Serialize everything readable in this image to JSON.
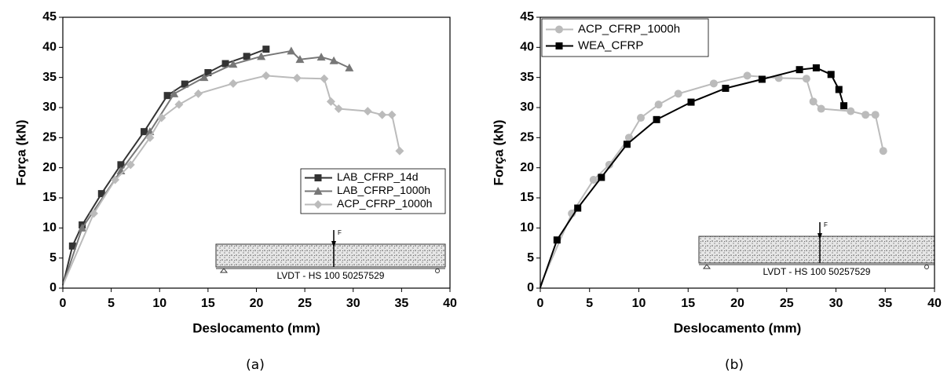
{
  "chart_data": [
    {
      "type": "line",
      "caption": "(a)",
      "xlabel": "Deslocamento (mm)",
      "ylabel": "Força (kN)",
      "xlim": [
        0,
        40
      ],
      "xticks": [
        0,
        5,
        10,
        15,
        20,
        25,
        30,
        35,
        40
      ],
      "ylim": [
        0,
        45
      ],
      "yticks": [
        0,
        5,
        10,
        15,
        20,
        25,
        30,
        35,
        40,
        45
      ],
      "grid": false,
      "legend": "lower right",
      "diagram_label": "LVDT - HS 100 50257529",
      "diagram_force": "F",
      "series": [
        {
          "name": "LAB_CFRP_14d",
          "color": "#333333",
          "marker": "square",
          "x": [
            0,
            1,
            2,
            4,
            6,
            8.4,
            10.8,
            12.6,
            15,
            16.8,
            19,
            21
          ],
          "values": [
            0.5,
            7,
            10.5,
            15.7,
            20.5,
            26,
            32,
            33.9,
            35.8,
            37.3,
            38.5,
            39.7
          ]
        },
        {
          "name": "LAB_CFRP_1000h",
          "color": "#777777",
          "marker": "triangle",
          "x": [
            0,
            2,
            6,
            9,
            11.5,
            14.6,
            17.6,
            20.5,
            23.6,
            24.5,
            26.7,
            28,
            29.6
          ],
          "values": [
            0.5,
            10,
            19.5,
            26,
            32.3,
            35,
            37.2,
            38.5,
            39.4,
            38,
            38.4,
            37.8,
            36.6
          ]
        },
        {
          "name": "ACP_CFRP_1000h",
          "color": "#bbbbbb",
          "marker": "diamond",
          "x": [
            0,
            3.2,
            5.4,
            7,
            9,
            10.2,
            12,
            14,
            17.6,
            21,
            24.2,
            27,
            27.7,
            28.5,
            31.5,
            33,
            34,
            34.8
          ],
          "values": [
            0.5,
            12.4,
            18,
            20.5,
            25,
            28.3,
            30.5,
            32.3,
            34,
            35.3,
            34.9,
            34.8,
            31,
            29.8,
            29.4,
            28.8,
            28.8,
            22.8
          ]
        }
      ]
    },
    {
      "type": "line",
      "caption": "(b)",
      "xlabel": "Deslocamento (mm)",
      "ylabel": "Força (kN)",
      "xlim": [
        0,
        40
      ],
      "xticks": [
        0,
        5,
        10,
        15,
        20,
        25,
        30,
        35,
        40
      ],
      "ylim": [
        0,
        45
      ],
      "yticks": [
        0,
        5,
        10,
        15,
        20,
        25,
        30,
        35,
        40,
        45
      ],
      "grid": false,
      "legend": "upper left",
      "diagram_label": "LVDT - HS 100 50257529",
      "diagram_force": "F",
      "series": [
        {
          "name": "ACP_CFRP_1000h",
          "color": "#bbbbbb",
          "marker": "circle",
          "x": [
            0,
            3.2,
            5.4,
            7,
            9,
            10.2,
            12,
            14,
            17.6,
            21,
            24.2,
            27,
            27.7,
            28.5,
            31.5,
            33,
            34,
            34.8
          ],
          "values": [
            0.5,
            12.4,
            18,
            20.5,
            25,
            28.3,
            30.5,
            32.3,
            34,
            35.3,
            34.9,
            34.8,
            31,
            29.8,
            29.4,
            28.8,
            28.8,
            22.8
          ]
        },
        {
          "name": "WEA_CFRP",
          "color": "#000000",
          "marker": "square",
          "x": [
            0,
            1.7,
            3.8,
            6.2,
            8.8,
            11.8,
            15.3,
            18.8,
            22.5,
            26.3,
            28,
            29.5,
            30.3,
            30.8
          ],
          "values": [
            0.1,
            8,
            13.3,
            18.4,
            23.9,
            28,
            30.9,
            33.2,
            34.7,
            36.3,
            36.6,
            35.5,
            33,
            30.3
          ]
        }
      ]
    }
  ]
}
